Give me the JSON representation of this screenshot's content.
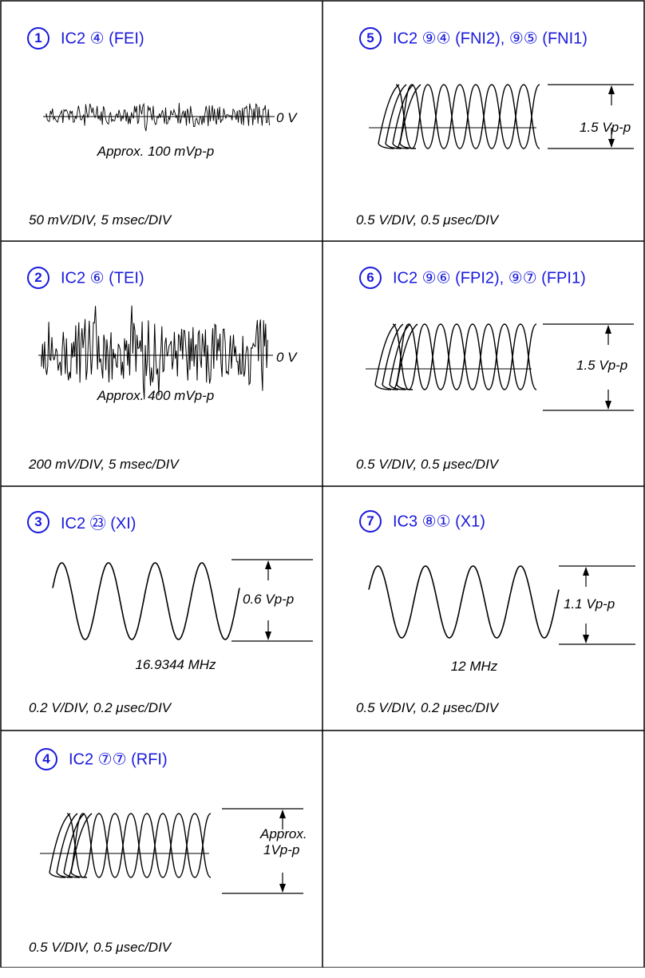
{
  "panels": [
    {
      "num": "1",
      "title": "IC2 ④ (FEI)",
      "kind": "noise",
      "amp": "small",
      "ref_label": "0 V",
      "caption": "Approx. 100 mVp-p",
      "scale": "50 mV/DIV, 5 msec/DIV"
    },
    {
      "num": "2",
      "title": "IC2 ⑥ (TEI)",
      "kind": "noise",
      "amp": "large",
      "ref_label": "0 V",
      "caption": "Approx. 400 mVp-p",
      "scale": "200 mV/DIV, 5 msec/DIV"
    },
    {
      "num": "3",
      "title": "IC2 ㉓ (XI)",
      "kind": "sine",
      "amp_label": "0.6 Vp-p",
      "caption": "16.9344 MHz",
      "scale": "0.2 V/DIV, 0.2 μsec/DIV"
    },
    {
      "num": "4",
      "title": "IC2 ⑦⑦ (RFI)",
      "kind": "eye",
      "amp_label_lines": [
        "Approx.",
        "1Vp-p"
      ],
      "scale": "0.5 V/DIV, 0.5 μsec/DIV"
    },
    {
      "num": "5",
      "title": "IC2 ⑨④ (FNI2), ⑨⑤ (FNI1)",
      "kind": "eye",
      "amp_label": "1.5 Vp-p",
      "scale": "0.5 V/DIV, 0.5 μsec/DIV"
    },
    {
      "num": "6",
      "title": "IC2 ⑨⑥ (FPI2), ⑨⑦ (FPI1)",
      "kind": "eye",
      "amp_label": "1.5 Vp-p",
      "scale": "0.5 V/DIV, 0.5 μsec/DIV"
    },
    {
      "num": "7",
      "title": "IC3 ⑧① (X1)",
      "kind": "sine",
      "amp_label": "1.1 Vp-p",
      "caption": "12 MHz",
      "scale": "0.5 V/DIV, 0.2 μsec/DIV"
    }
  ]
}
